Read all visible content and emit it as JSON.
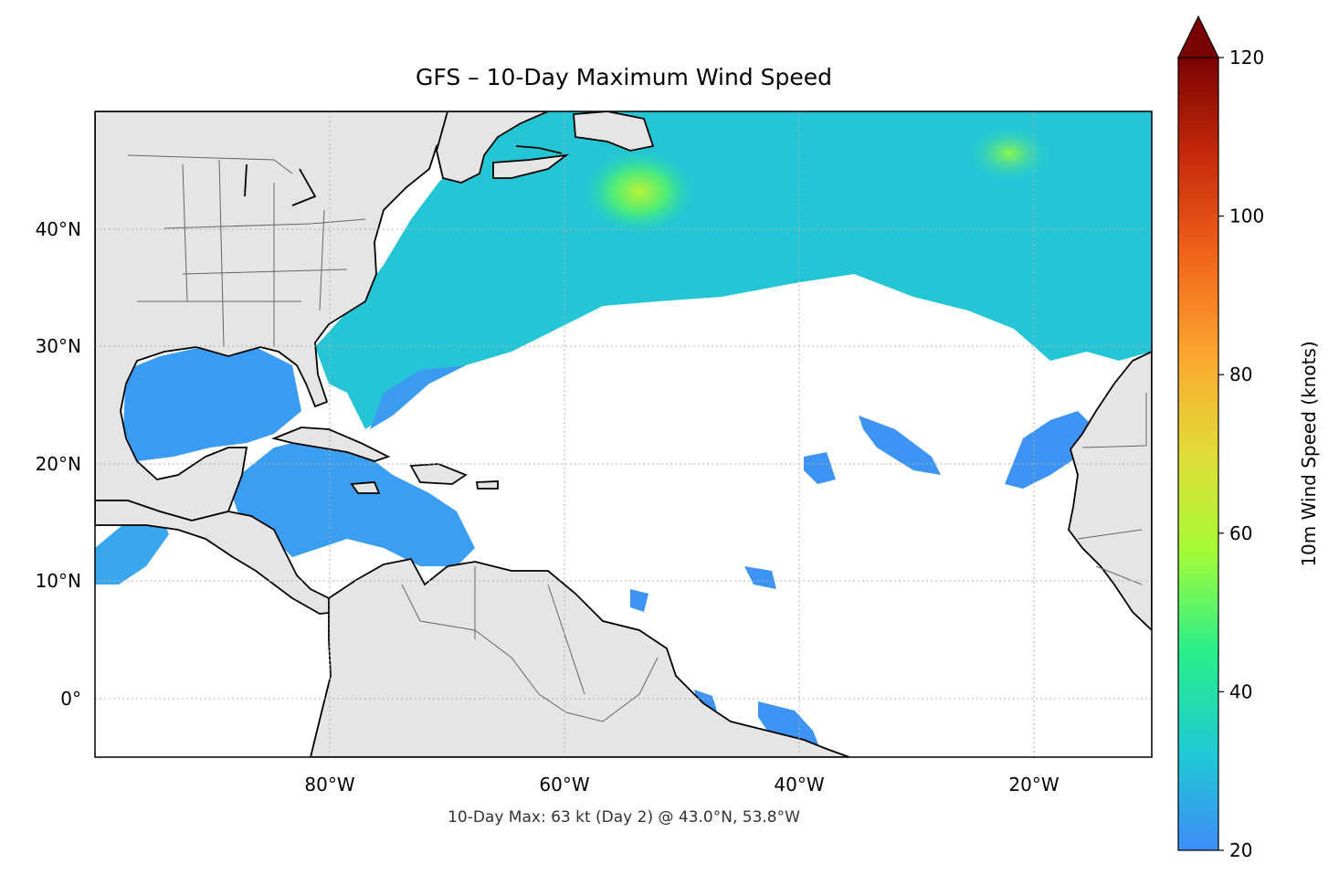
{
  "title": "GFS – 10-Day Maximum Wind Speed",
  "footnote": "10-Day Max: 63 kt (Day 2) @ 43.0°N, 53.8°W",
  "map": {
    "lon_range": [
      -100,
      -10
    ],
    "lat_range": [
      -5,
      50
    ],
    "lon_ticks": [
      {
        "value": -80,
        "label": "80°W"
      },
      {
        "value": -60,
        "label": "60°W"
      },
      {
        "value": -40,
        "label": "40°W"
      },
      {
        "value": -20,
        "label": "20°W"
      }
    ],
    "lat_ticks": [
      {
        "value": 40,
        "label": "40°N"
      },
      {
        "value": 30,
        "label": "30°N"
      },
      {
        "value": 20,
        "label": "20°N"
      },
      {
        "value": 10,
        "label": "10°N"
      },
      {
        "value": 0,
        "label": "0°"
      }
    ],
    "land_color": "#e5e5e5",
    "gridlines": true
  },
  "colorbar": {
    "label": "10m Wind Speed (knots)",
    "min": 20,
    "max": 120,
    "extend": "max",
    "ticks": [
      20,
      40,
      60,
      80,
      100,
      120
    ],
    "colormap": [
      "#3f8cf8",
      "#1fc9d5",
      "#28ef8a",
      "#a7fb35",
      "#e1dc37",
      "#fba930",
      "#f2641b",
      "#c4280b",
      "#7a0403"
    ]
  },
  "maximum": {
    "value_kt": 63,
    "day": 2,
    "lat": 43.0,
    "lon": -53.8
  }
}
